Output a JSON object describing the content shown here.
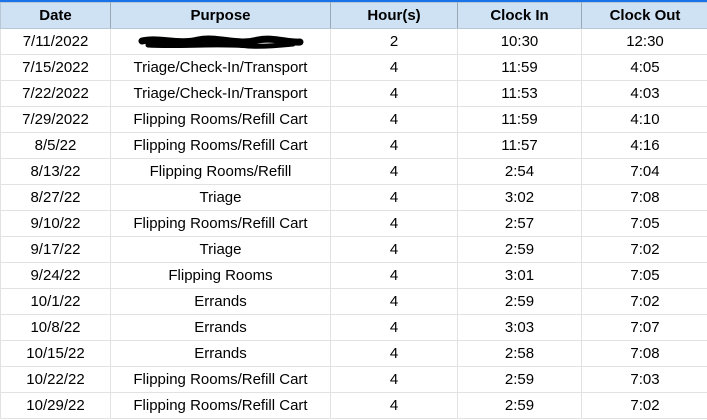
{
  "columns": [
    "Date",
    "Purpose",
    "Hour(s)",
    "Clock In",
    "Clock Out"
  ],
  "rows": [
    {
      "date": "7/11/2022",
      "purpose": "",
      "redacted": true,
      "hours": "2",
      "in": "10:30",
      "out": "12:30"
    },
    {
      "date": "7/15/2022",
      "purpose": "Triage/Check-In/Transport",
      "hours": "4",
      "in": "11:59",
      "out": "4:05"
    },
    {
      "date": "7/22/2022",
      "purpose": "Triage/Check-In/Transport",
      "hours": "4",
      "in": "11:53",
      "out": "4:03"
    },
    {
      "date": "7/29/2022",
      "purpose": "Flipping Rooms/Refill Cart",
      "hours": "4",
      "in": "11:59",
      "out": "4:10"
    },
    {
      "date": "8/5/22",
      "purpose": "Flipping Rooms/Refill Cart",
      "hours": "4",
      "in": "11:57",
      "out": "4:16"
    },
    {
      "date": "8/13/22",
      "purpose": "Flipping Rooms/Refill",
      "hours": "4",
      "in": "2:54",
      "out": "7:04"
    },
    {
      "date": "8/27/22",
      "purpose": "Triage",
      "hours": "4",
      "in": "3:02",
      "out": "7:08"
    },
    {
      "date": "9/10/22",
      "purpose": "Flipping Rooms/Refill Cart",
      "hours": "4",
      "in": "2:57",
      "out": "7:05"
    },
    {
      "date": "9/17/22",
      "purpose": "Triage",
      "hours": "4",
      "in": "2:59",
      "out": "7:02"
    },
    {
      "date": "9/24/22",
      "purpose": "Flipping Rooms",
      "hours": "4",
      "in": "3:01",
      "out": "7:05"
    },
    {
      "date": "10/1/22",
      "purpose": "Errands",
      "hours": "4",
      "in": "2:59",
      "out": "7:02"
    },
    {
      "date": "10/8/22",
      "purpose": "Errands",
      "hours": "4",
      "in": "3:03",
      "out": "7:07"
    },
    {
      "date": "10/15/22",
      "purpose": "Errands",
      "hours": "4",
      "in": "2:58",
      "out": "7:08"
    },
    {
      "date": "10/22/22",
      "purpose": "Flipping Rooms/Refill Cart",
      "hours": "4",
      "in": "2:59",
      "out": "7:03"
    },
    {
      "date": "10/29/22",
      "purpose": "Flipping Rooms/Refill Cart",
      "hours": "4",
      "in": "2:59",
      "out": "7:02"
    }
  ],
  "colors": {
    "header_bg": "#cfe2f3",
    "accent": "#1a73e8",
    "grid": "#e2e2e2"
  }
}
